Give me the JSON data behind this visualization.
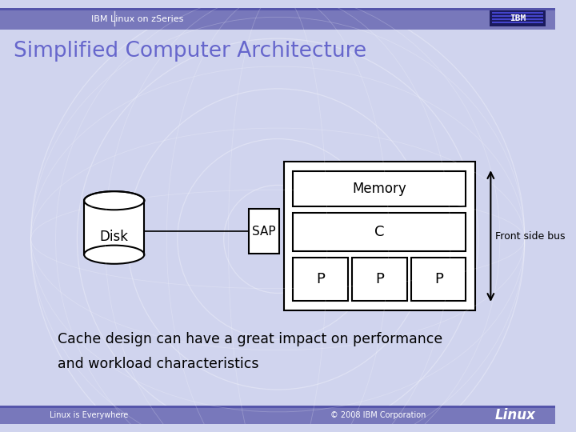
{
  "title": "Simplified Computer Architecture",
  "header_text": "IBM Linux on zSeries",
  "bg_color": "#d0d4ee",
  "header_bar_color": "#7878bb",
  "header_stripe_color": "#5555aa",
  "disk_label": "Disk",
  "sap_label": "SAP",
  "memory_label": "Memory",
  "cache_label": "C",
  "proc_labels": [
    "P",
    "P",
    "P"
  ],
  "front_side_bus_label": "Front side bus",
  "footer_left": "Linux is Everywhere",
  "footer_right": "© 2008 IBM Corporation",
  "footer_linux": "Linux",
  "caption_line1": "Cache design can have a great impact on performance",
  "caption_line2": "and workload characteristics"
}
